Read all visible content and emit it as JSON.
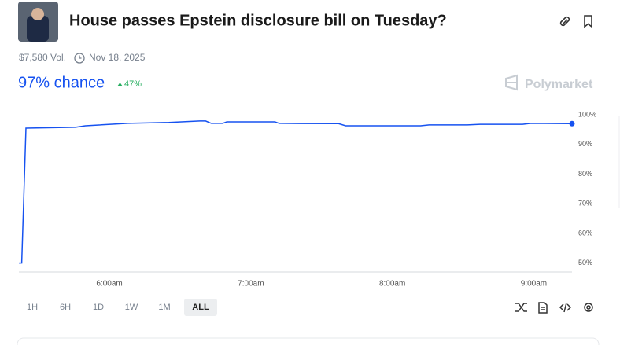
{
  "header": {
    "title": "House passes Epstein disclosure bill on Tuesday?",
    "volume": "$7,580 Vol.",
    "date": "Nov 18, 2025"
  },
  "odds": {
    "chance": "97% chance",
    "change": "47%"
  },
  "brand": "Polymarket",
  "timeframes": [
    "1H",
    "6H",
    "1D",
    "1W",
    "1M",
    "ALL"
  ],
  "chart_data": {
    "type": "line",
    "x": [
      5.36,
      5.38,
      5.41,
      5.76,
      5.83,
      6.13,
      6.42,
      6.64,
      6.68,
      6.72,
      6.8,
      6.83,
      7.17,
      7.2,
      7.62,
      7.67,
      8.2,
      8.26,
      8.53,
      8.62,
      8.92,
      8.98,
      9.27
    ],
    "series": [
      {
        "color": "#1652f0",
        "values": [
          50,
          50,
          95.5,
          95.8,
          96.3,
          97.1,
          97.4,
          97.9,
          97.9,
          97.1,
          97.1,
          97.6,
          97.6,
          97.1,
          97,
          96.3,
          96.3,
          96.6,
          96.6,
          96.8,
          96.8,
          97.1,
          97
        ]
      }
    ],
    "xlim": [
      5.36,
      9.27
    ],
    "xticks": [
      {
        "value": 6,
        "label": "6:00am"
      },
      {
        "value": 7,
        "label": "7:00am"
      },
      {
        "value": 8,
        "label": "8:00am"
      },
      {
        "value": 9,
        "label": "9:00am"
      }
    ],
    "ylim": [
      47,
      102
    ],
    "yticks": [
      {
        "value": 50,
        "label": "50%"
      },
      {
        "value": 60,
        "label": "60%"
      },
      {
        "value": 70,
        "label": "70%"
      },
      {
        "value": 80,
        "label": "80%"
      },
      {
        "value": 90,
        "label": "90%"
      },
      {
        "value": 100,
        "label": "100%"
      }
    ]
  }
}
